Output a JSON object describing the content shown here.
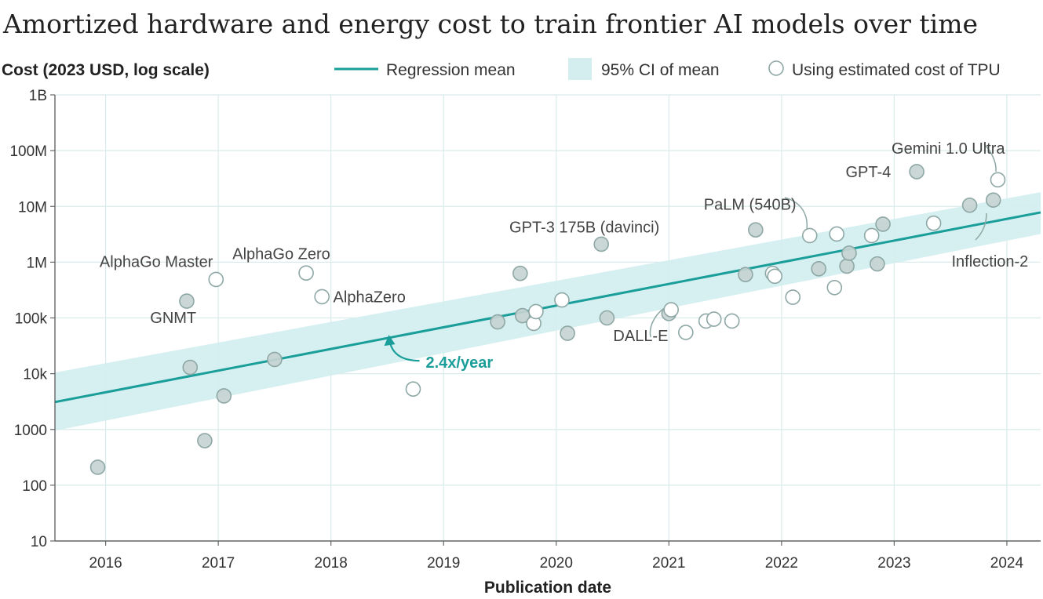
{
  "chart_data": {
    "type": "scatter",
    "title": "Amortized hardware and energy cost to train frontier AI models over time",
    "ylabel": "Cost (2023 USD, log scale)",
    "xlabel": "Publication date",
    "y_scale": "log",
    "ylim": [
      10,
      1000000000
    ],
    "xlim": [
      2015.55,
      2024.3
    ],
    "x_ticks": [
      2016,
      2017,
      2018,
      2019,
      2020,
      2021,
      2022,
      2023,
      2024
    ],
    "x_tick_labels": [
      "2016",
      "2017",
      "2018",
      "2019",
      "2020",
      "2021",
      "2022",
      "2023",
      "2024"
    ],
    "y_ticks": [
      10,
      100,
      1000,
      10000,
      100000,
      1000000,
      10000000,
      100000000,
      1000000000
    ],
    "y_tick_labels": [
      "10",
      "100",
      "1000",
      "10k",
      "100k",
      "1M",
      "10M",
      "100M",
      "1B"
    ],
    "grid": true,
    "legend": {
      "placement": "top",
      "items": [
        {
          "label": "Regression mean",
          "kind": "line"
        },
        {
          "label": "95% CI of mean",
          "kind": "band"
        },
        {
          "label": "Using estimated cost of TPU",
          "kind": "hollow-marker"
        }
      ]
    },
    "colors": {
      "line": "#1a9e9a",
      "band": "#d4eef0",
      "marker_fill": "#c5d4d2",
      "marker_stroke": "#8ea8a5",
      "hollow_stroke": "#8ea8a5",
      "grid": "#d9ebea",
      "axis": "#666666",
      "annotation_leader": "#8ea8a5"
    },
    "regression": {
      "x_start": 2015.55,
      "y_start": 3100,
      "x_end": 2024.3,
      "y_end": 7800000,
      "band_lower_start": 950,
      "band_upper_start": 10500,
      "band_lower_end": 3200000,
      "band_upper_end": 18000000
    },
    "growth_label": {
      "text": "2.4x/year",
      "x": 2018.8,
      "y": 16000
    },
    "series": [
      {
        "name": "Models",
        "filled": true,
        "points": [
          {
            "x": 2015.93,
            "y": 210
          },
          {
            "x": 2016.72,
            "y": 200000
          },
          {
            "x": 2016.75,
            "y": 13000
          },
          {
            "x": 2016.88,
            "y": 630
          },
          {
            "x": 2017.05,
            "y": 4000
          },
          {
            "x": 2017.5,
            "y": 18000
          },
          {
            "x": 2019.48,
            "y": 85000
          },
          {
            "x": 2019.68,
            "y": 630000
          },
          {
            "x": 2019.7,
            "y": 110000
          },
          {
            "x": 2020.1,
            "y": 53000
          },
          {
            "x": 2020.4,
            "y": 2100000
          },
          {
            "x": 2020.45,
            "y": 100000
          },
          {
            "x": 2021.0,
            "y": 120000
          },
          {
            "x": 2021.68,
            "y": 600000
          },
          {
            "x": 2021.77,
            "y": 3800000
          },
          {
            "x": 2022.33,
            "y": 760000
          },
          {
            "x": 2022.58,
            "y": 850000
          },
          {
            "x": 2022.6,
            "y": 1450000
          },
          {
            "x": 2022.85,
            "y": 930000
          },
          {
            "x": 2022.9,
            "y": 4800000
          },
          {
            "x": 2023.2,
            "y": 42000000
          },
          {
            "x": 2023.67,
            "y": 10500000
          },
          {
            "x": 2023.88,
            "y": 13000000
          }
        ]
      },
      {
        "name": "Using estimated cost of TPU",
        "filled": false,
        "points": [
          {
            "x": 2016.98,
            "y": 490000
          },
          {
            "x": 2017.78,
            "y": 640000
          },
          {
            "x": 2017.92,
            "y": 240000
          },
          {
            "x": 2018.73,
            "y": 5300
          },
          {
            "x": 2019.8,
            "y": 80000
          },
          {
            "x": 2019.82,
            "y": 130000
          },
          {
            "x": 2020.05,
            "y": 210000
          },
          {
            "x": 2021.02,
            "y": 140000
          },
          {
            "x": 2021.15,
            "y": 55000
          },
          {
            "x": 2021.33,
            "y": 88000
          },
          {
            "x": 2021.4,
            "y": 95000
          },
          {
            "x": 2021.56,
            "y": 88000
          },
          {
            "x": 2021.92,
            "y": 630000
          },
          {
            "x": 2021.94,
            "y": 560000
          },
          {
            "x": 2022.1,
            "y": 235000
          },
          {
            "x": 2022.25,
            "y": 3000000
          },
          {
            "x": 2022.47,
            "y": 350000
          },
          {
            "x": 2022.49,
            "y": 3200000
          },
          {
            "x": 2022.8,
            "y": 3000000
          },
          {
            "x": 2023.35,
            "y": 5000000
          },
          {
            "x": 2023.92,
            "y": 30000000
          }
        ]
      }
    ],
    "annotations": [
      {
        "text": "AlphaGo Master",
        "x": 2016.45,
        "y": 1030000,
        "anchor": "middle"
      },
      {
        "text": "GNMT",
        "x": 2016.6,
        "y": 102000,
        "anchor": "middle"
      },
      {
        "text": "AlphaGo Zero",
        "x": 2017.56,
        "y": 1430000,
        "anchor": "middle"
      },
      {
        "text": "AlphaZero",
        "x": 2018.02,
        "y": 240000,
        "anchor": "start"
      },
      {
        "text": "GPT-3 175B (davinci)",
        "x": 2020.25,
        "y": 4300000,
        "anchor": "middle"
      },
      {
        "text": "DALL-E",
        "x": 2020.75,
        "y": 48000,
        "anchor": "middle"
      },
      {
        "text": "PaLM (540B)",
        "x": 2021.72,
        "y": 11000000,
        "anchor": "middle"
      },
      {
        "text": "GPT-4",
        "x": 2022.77,
        "y": 42000000,
        "anchor": "middle"
      },
      {
        "text": "Gemini 1.0 Ultra",
        "x": 2023.48,
        "y": 110000000,
        "anchor": "middle"
      },
      {
        "text": "Inflection-2",
        "x": 2023.85,
        "y": 1050000,
        "anchor": "middle"
      }
    ]
  }
}
